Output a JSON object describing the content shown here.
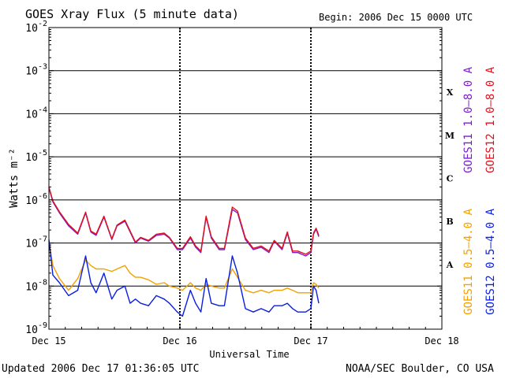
{
  "header": {
    "title": "GOES Xray Flux (5 minute data)",
    "begin": "Begin:  2006 Dec 15 0000 UTC"
  },
  "footer": {
    "updated": "Updated 2006 Dec 17 01:36:05 UTC",
    "credit": "NOAA/SEC Boulder, CO USA"
  },
  "colors": {
    "goes11_long": "#7a1fc9",
    "goes12_long": "#e0101c",
    "goes11_short": "#f2a100",
    "goes12_short": "#0a1ee0",
    "axis": "#000000"
  },
  "chart_data": {
    "type": "line",
    "title": "GOES Xray Flux (5 minute data)",
    "xlabel": "Universal Time",
    "ylabel": "Watts m⁻²",
    "yscale": "log",
    "ylim": [
      1e-09,
      0.01
    ],
    "xlim": [
      0,
      3
    ],
    "x_ticks": [
      {
        "x": 0,
        "label": "Dec 15"
      },
      {
        "x": 1,
        "label": "Dec 16"
      },
      {
        "x": 2,
        "label": "Dec 17"
      },
      {
        "x": 3,
        "label": "Dec 18"
      }
    ],
    "y_ticks": [
      {
        "exp": -9,
        "label": "10",
        "sup": "-9"
      },
      {
        "exp": -8,
        "label": "10",
        "sup": "-8"
      },
      {
        "exp": -7,
        "label": "10",
        "sup": "-7"
      },
      {
        "exp": -6,
        "label": "10",
        "sup": "-6"
      },
      {
        "exp": -5,
        "label": "10",
        "sup": "-5"
      },
      {
        "exp": -4,
        "label": "10",
        "sup": "-4"
      },
      {
        "exp": -3,
        "label": "10",
        "sup": "-3"
      },
      {
        "exp": -2,
        "label": "10",
        "sup": "-2"
      }
    ],
    "flare_classes": [
      {
        "label": "A",
        "exp": -7.5
      },
      {
        "label": "B",
        "exp": -6.5
      },
      {
        "label": "C",
        "exp": -5.5
      },
      {
        "label": "M",
        "exp": -4.5
      },
      {
        "label": "X",
        "exp": -3.5
      }
    ],
    "grid": "horizontal lines at each decade from 1e-8 to 1e-3",
    "legend": [
      {
        "name": "GOES11 1.0–8.0 A",
        "series": "goes11_long"
      },
      {
        "name": "GOES12 1.0–8.0 A",
        "series": "goes12_long"
      },
      {
        "name": "GOES11 0.5–4.0 A",
        "series": "goes11_short"
      },
      {
        "name": "GOES12 0.5–4.0 A",
        "series": "goes12_short"
      }
    ],
    "series": [
      {
        "name": "GOES11 1.0–8.0 A",
        "key": "goes11_long",
        "x": [
          0.0,
          0.03,
          0.08,
          0.15,
          0.22,
          0.28,
          0.32,
          0.36,
          0.42,
          0.48,
          0.52,
          0.58,
          0.62,
          0.66,
          0.7,
          0.76,
          0.82,
          0.88,
          0.92,
          0.98,
          1.02,
          1.08,
          1.12,
          1.16,
          1.2,
          1.24,
          1.3,
          1.34,
          1.4,
          1.44,
          1.5,
          1.56,
          1.62,
          1.68,
          1.72,
          1.78,
          1.82,
          1.86,
          1.9,
          1.96,
          2.0,
          2.02,
          2.04,
          2.06
        ],
        "y": [
          1.9e-06,
          9e-07,
          5e-07,
          2.5e-07,
          1.6e-07,
          5e-07,
          1.8e-07,
          1.5e-07,
          4e-07,
          1.2e-07,
          2.5e-07,
          3.2e-07,
          1.8e-07,
          1e-07,
          1.3e-07,
          1.1e-07,
          1.5e-07,
          1.6e-07,
          1.3e-07,
          7e-08,
          7e-08,
          1.3e-07,
          8e-08,
          6e-08,
          4e-07,
          1.3e-07,
          7e-08,
          7e-08,
          6e-07,
          5e-07,
          1.2e-07,
          7e-08,
          8e-08,
          6e-08,
          1.1e-07,
          7e-08,
          1.7e-07,
          6e-08,
          6e-08,
          5e-08,
          6e-08,
          1.6e-07,
          2.1e-07,
          1.4e-07
        ]
      },
      {
        "name": "GOES12 1.0–8.0 A",
        "key": "goes12_long",
        "x": [
          0.0,
          0.03,
          0.08,
          0.15,
          0.22,
          0.28,
          0.32,
          0.36,
          0.42,
          0.48,
          0.52,
          0.58,
          0.62,
          0.66,
          0.7,
          0.76,
          0.82,
          0.88,
          0.92,
          0.98,
          1.02,
          1.08,
          1.12,
          1.16,
          1.2,
          1.24,
          1.3,
          1.34,
          1.4,
          1.44,
          1.5,
          1.56,
          1.62,
          1.68,
          1.72,
          1.78,
          1.82,
          1.86,
          1.9,
          1.96,
          2.0,
          2.02,
          2.04,
          2.06
        ],
        "y": [
          2e-06,
          9.5e-07,
          5.3e-07,
          2.7e-07,
          1.7e-07,
          5.2e-07,
          1.9e-07,
          1.6e-07,
          4.2e-07,
          1.25e-07,
          2.6e-07,
          3.4e-07,
          1.9e-07,
          1.05e-07,
          1.35e-07,
          1.15e-07,
          1.6e-07,
          1.7e-07,
          1.35e-07,
          7.5e-08,
          7.5e-08,
          1.4e-07,
          8.5e-08,
          6.5e-08,
          4.2e-07,
          1.4e-07,
          7.5e-08,
          7.5e-08,
          6.8e-07,
          5.5e-07,
          1.3e-07,
          7.5e-08,
          8.5e-08,
          6.5e-08,
          1.15e-07,
          7.5e-08,
          1.8e-07,
          6.5e-08,
          6.5e-08,
          5.5e-08,
          6.5e-08,
          1.7e-07,
          2.2e-07,
          1.5e-07
        ]
      },
      {
        "name": "GOES11 0.5–4.0 A",
        "key": "goes11_short",
        "x": [
          0.0,
          0.03,
          0.08,
          0.15,
          0.22,
          0.28,
          0.32,
          0.36,
          0.42,
          0.48,
          0.52,
          0.58,
          0.62,
          0.66,
          0.7,
          0.76,
          0.82,
          0.88,
          0.92,
          0.98,
          1.02,
          1.08,
          1.12,
          1.16,
          1.2,
          1.24,
          1.3,
          1.34,
          1.4,
          1.44,
          1.5,
          1.56,
          1.62,
          1.68,
          1.72,
          1.78,
          1.82,
          1.86,
          1.9,
          1.96,
          2.0,
          2.02,
          2.04,
          2.06
        ],
        "y": [
          1.1e-07,
          3e-08,
          1.5e-08,
          8e-09,
          1.5e-08,
          4e-08,
          3e-08,
          2.5e-08,
          2.5e-08,
          2.2e-08,
          2.5e-08,
          3e-08,
          2e-08,
          1.6e-08,
          1.6e-08,
          1.4e-08,
          1.1e-08,
          1.2e-08,
          1e-08,
          9e-09,
          8e-09,
          1.2e-08,
          9e-09,
          8e-09,
          1.1e-08,
          1e-08,
          9e-09,
          9e-09,
          2.5e-08,
          1.6e-08,
          8e-09,
          7e-09,
          8e-09,
          7e-09,
          8e-09,
          8e-09,
          9e-09,
          8e-09,
          7e-09,
          7e-09,
          7e-09,
          1.2e-08,
          1.1e-08,
          9e-09
        ]
      },
      {
        "name": "GOES12 0.5–4.0 A",
        "key": "goes12_short",
        "x": [
          0.0,
          0.03,
          0.08,
          0.15,
          0.22,
          0.28,
          0.32,
          0.36,
          0.42,
          0.48,
          0.52,
          0.58,
          0.62,
          0.66,
          0.7,
          0.76,
          0.82,
          0.88,
          0.92,
          0.98,
          1.02,
          1.08,
          1.12,
          1.16,
          1.2,
          1.24,
          1.3,
          1.34,
          1.4,
          1.44,
          1.5,
          1.56,
          1.62,
          1.68,
          1.72,
          1.78,
          1.82,
          1.86,
          1.9,
          1.96,
          2.0,
          2.02,
          2.04,
          2.06
        ],
        "y": [
          1.2e-07,
          1.8e-08,
          1.2e-08,
          6e-09,
          8e-09,
          5e-08,
          1.2e-08,
          7e-09,
          2e-08,
          5e-09,
          8e-09,
          1e-08,
          4e-09,
          5e-09,
          4e-09,
          3.5e-09,
          6e-09,
          5e-09,
          4e-09,
          2.5e-09,
          2e-09,
          8e-09,
          4e-09,
          2.5e-09,
          1.5e-08,
          4e-09,
          3.5e-09,
          3.5e-09,
          5e-08,
          2e-08,
          3e-09,
          2.5e-09,
          3e-09,
          2.5e-09,
          3.5e-09,
          3.5e-09,
          4e-09,
          3e-09,
          2.5e-09,
          2.5e-09,
          3e-09,
          1e-08,
          8e-09,
          4e-09
        ]
      }
    ]
  }
}
